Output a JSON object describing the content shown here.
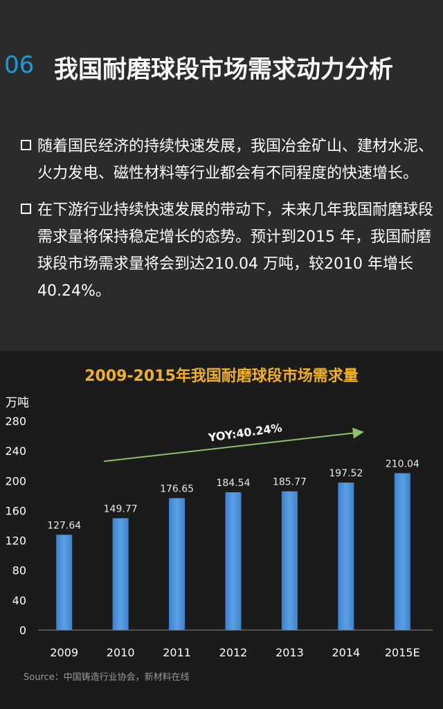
{
  "header": {
    "section_number": "06",
    "title": "我国耐磨球段市场需求动力分析"
  },
  "bullets": [
    {
      "text": "随着国民经济的持续快速发展，我国冶金矿山、建材水泥、火力发电、磁性材料等行业都会有不同程度的快速增长。"
    },
    {
      "text": "在下游行业持续快速发展的带动下，未来几年我国耐磨球段需求量将保持稳定增长的态势。预计到2015 年，我国耐磨球段市场需求量将会到达210.04  万吨，较2010 年增长40.24%。"
    }
  ],
  "chart_data": {
    "type": "bar",
    "title": "2009-2015年我国耐磨球段市场需求量",
    "ylabel": "万吨",
    "xlabel": "",
    "categories": [
      "2009",
      "2010",
      "2011",
      "2012",
      "2013",
      "2014",
      "2015E"
    ],
    "values": [
      127.64,
      149.77,
      176.65,
      184.54,
      185.77,
      197.52,
      210.04
    ],
    "value_labels": [
      "127.64",
      "149.77",
      "176.65",
      "184.54",
      "185.77",
      "197.52",
      "210.04"
    ],
    "ylim": [
      0,
      280
    ],
    "yticks": [
      0,
      40,
      80,
      120,
      160,
      200,
      240,
      280
    ],
    "annotation": "YOY:40.24%",
    "grid": false,
    "bar_color": "#4a90d9",
    "annotation_color": "#8fc06a"
  },
  "source": "Source：中国铸造行业协会，新材料在线",
  "colors": {
    "accent": "#1e9bd7",
    "chart_title": "#f2b21c",
    "background": "#2b2b2b",
    "panel": "#1b1b1b"
  }
}
